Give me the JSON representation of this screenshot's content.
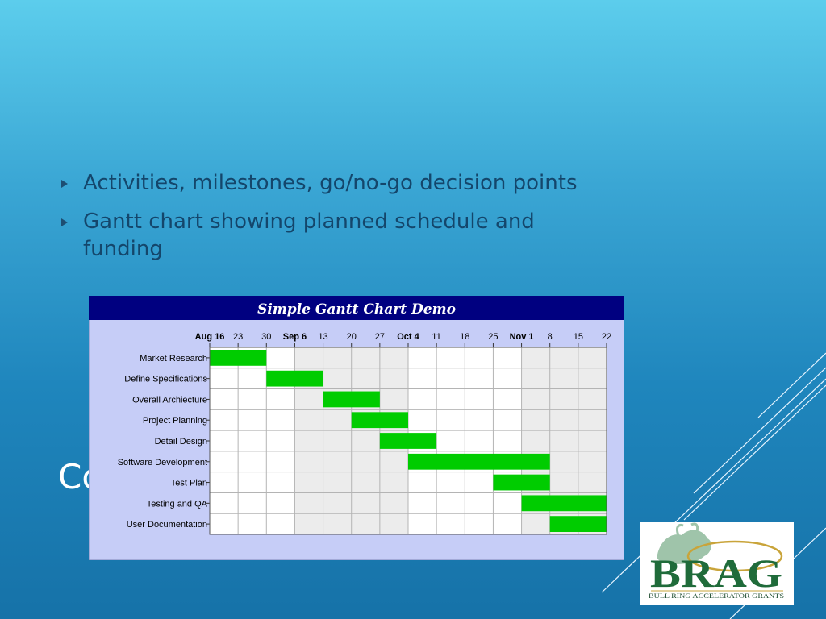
{
  "slide": {
    "bullets": [
      "Activities, milestones, go/no-go decision points",
      "Gantt chart showing planned schedule and funding"
    ],
    "title_partial": "Co"
  },
  "chart_data": {
    "type": "gantt",
    "title": "Simple Gantt Chart Demo",
    "x_ticks": [
      {
        "label": "Aug 16",
        "date": "2001-08-16",
        "bold": true
      },
      {
        "label": "23",
        "date": "2001-08-23"
      },
      {
        "label": "30",
        "date": "2001-08-30"
      },
      {
        "label": "Sep 6",
        "date": "2001-09-06",
        "bold": true
      },
      {
        "label": "13",
        "date": "2001-09-13"
      },
      {
        "label": "20",
        "date": "2001-09-20"
      },
      {
        "label": "27",
        "date": "2001-09-27"
      },
      {
        "label": "Oct 4",
        "date": "2001-10-04",
        "bold": true
      },
      {
        "label": "11",
        "date": "2001-10-11"
      },
      {
        "label": "18",
        "date": "2001-10-18"
      },
      {
        "label": "25",
        "date": "2001-10-25"
      },
      {
        "label": "Nov 1",
        "date": "2001-11-01",
        "bold": true
      },
      {
        "label": "8",
        "date": "2001-11-08"
      },
      {
        "label": "15",
        "date": "2001-11-15"
      },
      {
        "label": "22",
        "date": "2001-11-22"
      }
    ],
    "x_range": [
      "2001-08-16",
      "2001-11-22"
    ],
    "tasks": [
      {
        "name": "Market Research",
        "start": "2001-08-16",
        "end": "2001-08-30"
      },
      {
        "name": "Define Specifications",
        "start": "2001-08-30",
        "end": "2001-09-13"
      },
      {
        "name": "Overall Archiecture",
        "start": "2001-09-13",
        "end": "2001-09-27"
      },
      {
        "name": "Project Planning",
        "start": "2001-09-20",
        "end": "2001-10-04"
      },
      {
        "name": "Detail Design",
        "start": "2001-09-27",
        "end": "2001-10-11"
      },
      {
        "name": "Software Development",
        "start": "2001-10-04",
        "end": "2001-11-08"
      },
      {
        "name": "Test Plan",
        "start": "2001-10-25",
        "end": "2001-11-08"
      },
      {
        "name": "Testing and QA",
        "start": "2001-11-01",
        "end": "2001-11-22"
      },
      {
        "name": "User Documentation",
        "start": "2001-11-08",
        "end": "2001-11-22"
      }
    ],
    "grid": true,
    "colors": {
      "title_bar": "#000080",
      "title_text": "#ffffff",
      "background": "#c6cdf7",
      "bar": "#00cc00",
      "alt_column": "#ececec",
      "plot": "#ffffff",
      "grid": "#b4b4b4"
    }
  },
  "logo": {
    "wordmark": "BRAG",
    "tagline": "BULL RING ACCELERATOR GRANTS",
    "colors": {
      "wordmark": "#1f6b3a",
      "tagline": "#1f4d30",
      "bull": "#9fc4aa",
      "ring": "#c9a43a"
    }
  }
}
